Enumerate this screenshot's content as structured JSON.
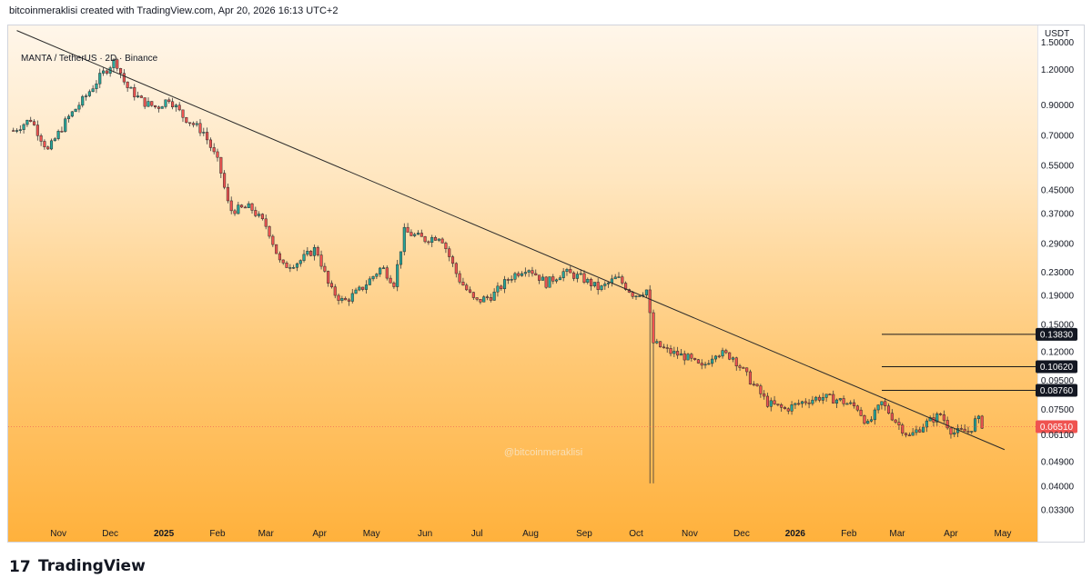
{
  "header": {
    "attribution": "bitcoinmeraklisi created with TradingView.com, Apr 20, 2026 16:13 UTC+2"
  },
  "symbol_line": "MANTA / TetherUS · 2D · Binance",
  "currency": "USDT",
  "watermark": "@bitcoinmeraklisi",
  "footer": {
    "logo_text": "TradingView",
    "logo_mark": "17"
  },
  "colors": {
    "up": "#26a69a",
    "down": "#ef5350",
    "level_label_bg": "#131722",
    "last_price_bg": "#ef5350"
  },
  "chart_data": {
    "type": "candlestick",
    "title": "MANTA / TetherUS · 2D · Binance",
    "scale": "log",
    "ylim": [
      0.03,
      1.72
    ],
    "y_ticks": [
      "1.50000",
      "1.20000",
      "0.90000",
      "0.70000",
      "0.55000",
      "0.45000",
      "0.37000",
      "0.29000",
      "0.23000",
      "0.19000",
      "0.15000",
      "0.12000",
      "0.09500",
      "0.07500",
      "0.06100",
      "0.04900",
      "0.04000",
      "0.03300"
    ],
    "x_ticks": [
      {
        "label": "Nov",
        "date": "2024-11-01"
      },
      {
        "label": "Dec",
        "date": "2024-12-01"
      },
      {
        "label": "2025",
        "date": "2025-01-01",
        "bold": true
      },
      {
        "label": "Feb",
        "date": "2025-02-01"
      },
      {
        "label": "Mar",
        "date": "2025-03-01"
      },
      {
        "label": "Apr",
        "date": "2025-04-01"
      },
      {
        "label": "May",
        "date": "2025-05-01"
      },
      {
        "label": "Jun",
        "date": "2025-06-01"
      },
      {
        "label": "Jul",
        "date": "2025-07-01"
      },
      {
        "label": "Aug",
        "date": "2025-08-01"
      },
      {
        "label": "Sep",
        "date": "2025-09-01"
      },
      {
        "label": "Oct",
        "date": "2025-10-01"
      },
      {
        "label": "Nov",
        "date": "2025-11-01"
      },
      {
        "label": "Dec",
        "date": "2025-12-01"
      },
      {
        "label": "2026",
        "date": "2026-01-01",
        "bold": true
      },
      {
        "label": "Feb",
        "date": "2026-02-01"
      },
      {
        "label": "Mar",
        "date": "2026-03-01"
      },
      {
        "label": "Apr",
        "date": "2026-04-01"
      },
      {
        "label": "May",
        "date": "2026-05-01"
      }
    ],
    "price_anchors": [
      [
        "2024-10-06",
        0.73
      ],
      [
        "2024-10-16",
        0.8
      ],
      [
        "2024-10-26",
        0.62
      ],
      [
        "2024-11-06",
        0.8
      ],
      [
        "2024-11-16",
        0.95
      ],
      [
        "2024-11-26",
        1.15
      ],
      [
        "2024-12-04",
        1.3
      ],
      [
        "2024-12-10",
        1.05
      ],
      [
        "2024-12-20",
        0.92
      ],
      [
        "2024-12-28",
        0.88
      ],
      [
        "2025-01-04",
        0.95
      ],
      [
        "2025-01-12",
        0.82
      ],
      [
        "2025-01-24",
        0.72
      ],
      [
        "2025-02-02",
        0.55
      ],
      [
        "2025-02-08",
        0.38
      ],
      [
        "2025-02-20",
        0.39
      ],
      [
        "2025-03-02",
        0.33
      ],
      [
        "2025-03-10",
        0.24
      ],
      [
        "2025-03-20",
        0.25
      ],
      [
        "2025-03-30",
        0.28
      ],
      [
        "2025-04-07",
        0.2
      ],
      [
        "2025-04-15",
        0.18
      ],
      [
        "2025-04-25",
        0.2
      ],
      [
        "2025-05-07",
        0.24
      ],
      [
        "2025-05-14",
        0.21
      ],
      [
        "2025-05-20",
        0.32
      ],
      [
        "2025-06-01",
        0.3
      ],
      [
        "2025-06-10",
        0.31
      ],
      [
        "2025-06-20",
        0.22
      ],
      [
        "2025-06-30",
        0.18
      ],
      [
        "2025-07-10",
        0.19
      ],
      [
        "2025-07-20",
        0.22
      ],
      [
        "2025-07-30",
        0.24
      ],
      [
        "2025-08-10",
        0.21
      ],
      [
        "2025-08-20",
        0.23
      ],
      [
        "2025-08-30",
        0.22
      ],
      [
        "2025-09-10",
        0.2
      ],
      [
        "2025-09-20",
        0.22
      ],
      [
        "2025-09-30",
        0.19
      ],
      [
        "2025-10-08",
        0.2
      ],
      [
        "2025-10-10",
        0.13
      ],
      [
        "2025-10-20",
        0.12
      ],
      [
        "2025-10-30",
        0.115
      ],
      [
        "2025-11-08",
        0.105
      ],
      [
        "2025-11-16",
        0.12
      ],
      [
        "2025-11-26",
        0.115
      ],
      [
        "2025-12-06",
        0.095
      ],
      [
        "2025-12-16",
        0.079
      ],
      [
        "2025-12-26",
        0.075
      ],
      [
        "2026-01-06",
        0.08
      ],
      [
        "2026-01-16",
        0.083
      ],
      [
        "2026-01-26",
        0.081
      ],
      [
        "2026-02-06",
        0.076
      ],
      [
        "2026-02-12",
        0.066
      ],
      [
        "2026-02-20",
        0.079
      ],
      [
        "2026-03-01",
        0.067
      ],
      [
        "2026-03-08",
        0.06
      ],
      [
        "2026-03-16",
        0.066
      ],
      [
        "2026-03-26",
        0.072
      ],
      [
        "2026-04-02",
        0.062
      ],
      [
        "2026-04-12",
        0.063
      ],
      [
        "2026-04-16",
        0.07
      ],
      [
        "2026-04-20",
        0.0651
      ]
    ],
    "trendline": {
      "from": [
        "2024-10-08",
        1.65
      ],
      "to": [
        "2026-05-02",
        0.054
      ]
    },
    "levels": [
      "0.13830",
      "0.10620",
      "0.08760"
    ],
    "last_price": {
      "value": "0.06510"
    }
  }
}
